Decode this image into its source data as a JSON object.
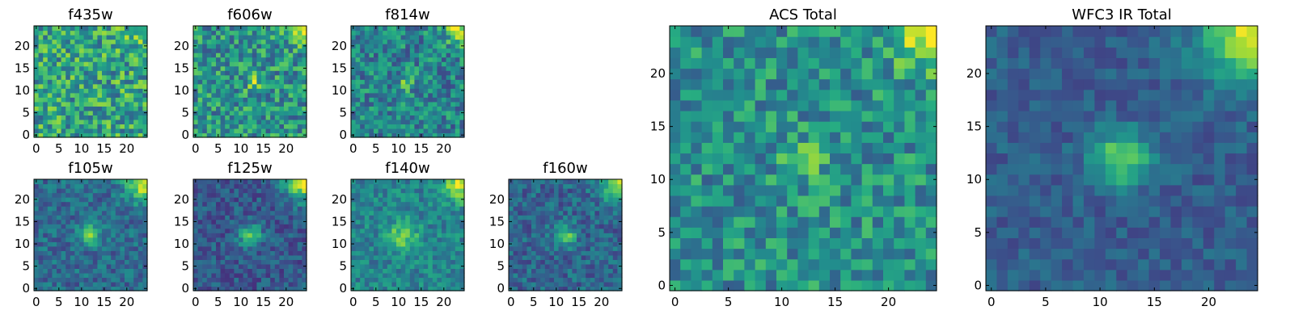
{
  "figure": {
    "description_free": true
  },
  "colormap": {
    "name": "viridis",
    "stops": [
      "#440154",
      "#472c7a",
      "#3b518b",
      "#2c718e",
      "#21908d",
      "#27ad81",
      "#5cc863",
      "#aadc32",
      "#fde725"
    ]
  },
  "chart_data": [
    {
      "type": "heatmap",
      "id": "f435w",
      "title": "f435w",
      "grid": [
        25,
        25
      ],
      "xticks": [
        "0",
        "5",
        "10",
        "15",
        "20"
      ],
      "yticks": [
        "0",
        "5",
        "10",
        "15",
        "20"
      ],
      "xlim": [
        -0.5,
        24.5
      ],
      "ylim": [
        -0.5,
        24.5
      ],
      "source": {
        "x": 12,
        "y": 12,
        "amp": 0.0,
        "sigma": 1.6
      },
      "corner": {
        "x": 24,
        "y": 24,
        "amp": 0.15,
        "sigma": 3
      },
      "noise": 0.55,
      "base": 0.58
    },
    {
      "type": "heatmap",
      "id": "f606w",
      "title": "f606w",
      "grid": [
        25,
        25
      ],
      "xticks": [
        "0",
        "5",
        "10",
        "15",
        "20"
      ],
      "yticks": [
        "0",
        "5",
        "10",
        "15",
        "20"
      ],
      "xlim": [
        -0.5,
        24.5
      ],
      "ylim": [
        -0.5,
        24.5
      ],
      "source": {
        "x": 13,
        "y": 12,
        "amp": 0.25,
        "sigma": 1.2
      },
      "corner": {
        "x": 24,
        "y": 24,
        "amp": 0.35,
        "sigma": 2.5
      },
      "noise": 0.5,
      "base": 0.52
    },
    {
      "type": "heatmap",
      "id": "f814w",
      "title": "f814w",
      "grid": [
        25,
        25
      ],
      "xticks": [
        "0",
        "5",
        "10",
        "15",
        "20"
      ],
      "yticks": [
        "0",
        "5",
        "10",
        "15",
        "20"
      ],
      "xlim": [
        -0.5,
        24.5
      ],
      "ylim": [
        -0.5,
        24.5
      ],
      "source": {
        "x": 12,
        "y": 12,
        "amp": 0.3,
        "sigma": 1.3
      },
      "corner": {
        "x": 24,
        "y": 24,
        "amp": 0.5,
        "sigma": 2.5
      },
      "noise": 0.45,
      "base": 0.45
    },
    {
      "type": "heatmap",
      "id": "f105w",
      "title": "f105w",
      "grid": [
        25,
        25
      ],
      "xticks": [
        "0",
        "5",
        "10",
        "15",
        "20"
      ],
      "yticks": [
        "0",
        "5",
        "10",
        "15",
        "20"
      ],
      "xlim": [
        -0.5,
        24.5
      ],
      "ylim": [
        -0.5,
        24.5
      ],
      "source": {
        "x": 12,
        "y": 12,
        "amp": 0.4,
        "sigma": 1.7
      },
      "corner": {
        "x": 24,
        "y": 24,
        "amp": 0.6,
        "sigma": 3
      },
      "noise": 0.3,
      "base": 0.35
    },
    {
      "type": "heatmap",
      "id": "f125w",
      "title": "f125w",
      "grid": [
        25,
        25
      ],
      "xticks": [
        "0",
        "5",
        "10",
        "15",
        "20"
      ],
      "yticks": [
        "0",
        "5",
        "10",
        "15",
        "20"
      ],
      "xlim": [
        -0.5,
        24.5
      ],
      "ylim": [
        -0.5,
        24.5
      ],
      "source": {
        "x": 12,
        "y": 12,
        "amp": 0.45,
        "sigma": 1.8
      },
      "corner": {
        "x": 24,
        "y": 24,
        "amp": 0.65,
        "sigma": 3
      },
      "noise": 0.28,
      "base": 0.28
    },
    {
      "type": "heatmap",
      "id": "f140w",
      "title": "f140w",
      "grid": [
        25,
        25
      ],
      "xticks": [
        "0",
        "5",
        "10",
        "15",
        "20"
      ],
      "yticks": [
        "0",
        "5",
        "10",
        "15",
        "20"
      ],
      "xlim": [
        -0.5,
        24.5
      ],
      "ylim": [
        -0.5,
        24.5
      ],
      "source": {
        "x": 11,
        "y": 12,
        "amp": 0.35,
        "sigma": 2.2
      },
      "corner": {
        "x": 24,
        "y": 24,
        "amp": 0.5,
        "sigma": 3
      },
      "noise": 0.3,
      "base": 0.45
    },
    {
      "type": "heatmap",
      "id": "f160w",
      "title": "f160w",
      "grid": [
        25,
        25
      ],
      "xticks": [
        "0",
        "5",
        "10",
        "15",
        "20"
      ],
      "yticks": [
        "0",
        "5",
        "10",
        "15",
        "20"
      ],
      "xlim": [
        -0.5,
        24.5
      ],
      "ylim": [
        -0.5,
        24.5
      ],
      "source": {
        "x": 12,
        "y": 12,
        "amp": 0.4,
        "sigma": 1.7
      },
      "corner": {
        "x": 24,
        "y": 24,
        "amp": 0.6,
        "sigma": 3
      },
      "noise": 0.3,
      "base": 0.33
    },
    {
      "type": "heatmap",
      "id": "acs-total",
      "title": "ACS Total",
      "grid": [
        25,
        25
      ],
      "xticks": [
        "0",
        "5",
        "10",
        "15",
        "20"
      ],
      "yticks": [
        "0",
        "5",
        "10",
        "15",
        "20"
      ],
      "xlim": [
        -0.5,
        24.5
      ],
      "ylim": [
        -0.5,
        24.5
      ],
      "source": {
        "x": 12,
        "y": 12,
        "amp": 0.3,
        "sigma": 1.2
      },
      "corner": {
        "x": 24,
        "y": 24,
        "amp": 0.45,
        "sigma": 2.5
      },
      "noise": 0.42,
      "base": 0.5
    },
    {
      "type": "heatmap",
      "id": "wfc3-ir-total",
      "title": "WFC3 IR Total",
      "grid": [
        25,
        25
      ],
      "xticks": [
        "0",
        "5",
        "10",
        "15",
        "20"
      ],
      "yticks": [
        "0",
        "5",
        "10",
        "15",
        "20"
      ],
      "xlim": [
        -0.5,
        24.5
      ],
      "ylim": [
        -0.5,
        24.5
      ],
      "source": {
        "x": 12,
        "y": 12,
        "amp": 0.5,
        "sigma": 1.8
      },
      "corner": {
        "x": 24,
        "y": 24,
        "amp": 0.65,
        "sigma": 3.2
      },
      "noise": 0.2,
      "base": 0.3
    }
  ]
}
